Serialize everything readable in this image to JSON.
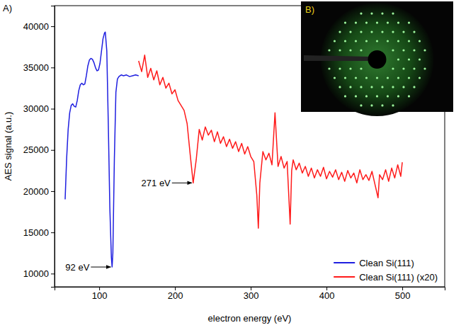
{
  "chart_data": {
    "type": "line",
    "panel_label": "A)",
    "inset_label": "B)",
    "x_label": "electron energy (eV)",
    "y_label": "AES signal (a.u.)",
    "xlim": [
      41,
      556
    ],
    "ylim": [
      8400,
      42500
    ],
    "xticks": [
      100,
      200,
      300,
      400,
      500
    ],
    "yticks": [
      10000,
      15000,
      20000,
      25000,
      30000,
      35000,
      40000
    ],
    "legend": "lower right",
    "series": [
      {
        "name": "Clean Si(111)",
        "color": "#1f1fe0",
        "x": [
          55,
          57,
          59,
          61,
          63,
          65,
          67,
          69,
          71,
          73,
          75,
          77,
          79,
          81,
          83,
          85,
          87,
          89,
          91,
          93,
          95,
          97,
          99,
          101,
          103,
          105,
          107,
          108,
          110,
          112,
          114,
          116,
          117,
          118,
          120,
          122,
          124,
          126,
          129,
          132,
          136,
          140,
          144,
          148,
          152
        ],
        "values": [
          19000,
          24000,
          27500,
          29500,
          30400,
          30600,
          30300,
          30200,
          31000,
          32200,
          32900,
          33100,
          32900,
          33000,
          34000,
          35200,
          35900,
          36100,
          36000,
          35600,
          35000,
          34600,
          34700,
          35500,
          37000,
          38500,
          39200,
          39300,
          37000,
          28000,
          18000,
          12000,
          10800,
          12500,
          24000,
          32000,
          33600,
          33900,
          34100,
          34000,
          34100,
          33900,
          34000,
          34100,
          34000
        ]
      },
      {
        "name": "Clean Si(111) (x20)",
        "color": "#ff1a1a",
        "x": [
          152,
          156,
          160,
          164,
          168,
          172,
          176,
          180,
          184,
          188,
          192,
          196,
          200,
          204,
          208,
          212,
          216,
          220,
          224,
          228,
          232,
          236,
          240,
          244,
          248,
          252,
          256,
          260,
          264,
          268,
          272,
          276,
          280,
          284,
          288,
          292,
          296,
          300,
          304,
          308,
          310,
          312,
          316,
          320,
          324,
          328,
          332,
          336,
          340,
          344,
          348,
          352,
          354,
          356,
          360,
          364,
          368,
          372,
          376,
          380,
          384,
          388,
          392,
          396,
          400,
          404,
          408,
          412,
          416,
          420,
          424,
          428,
          432,
          436,
          440,
          444,
          448,
          452,
          456,
          460,
          464,
          468,
          470,
          474,
          478,
          482,
          486,
          490,
          494,
          498,
          500
        ],
        "values": [
          35800,
          34500,
          36500,
          33800,
          34900,
          33500,
          34600,
          32900,
          33800,
          32500,
          33100,
          31800,
          32300,
          31000,
          30400,
          29800,
          28200,
          24500,
          21000,
          23800,
          27500,
          26200,
          27800,
          26800,
          27400,
          26000,
          27200,
          25800,
          26600,
          25400,
          26300,
          25200,
          26000,
          24800,
          25800,
          24500,
          25400,
          24200,
          23600,
          19500,
          15500,
          21000,
          24800,
          23800,
          24600,
          23200,
          29500,
          23000,
          24200,
          22800,
          23600,
          16000,
          22500,
          23800,
          22600,
          23400,
          22200,
          23000,
          21800,
          22800,
          21600,
          22600,
          21800,
          22900,
          21500,
          22400,
          21700,
          22600,
          21400,
          22300,
          21200,
          22500,
          21600,
          22200,
          21000,
          22600,
          21400,
          22000,
          21300,
          22400,
          20800,
          19200,
          22000,
          21400,
          22600,
          21200,
          22800,
          21600,
          23200,
          21800,
          23500
        ]
      }
    ],
    "annotations": [
      {
        "text": "92 eV",
        "x": 117,
        "y": 10800
      },
      {
        "text": "271 eV",
        "x": 224,
        "y": 21000
      }
    ]
  }
}
